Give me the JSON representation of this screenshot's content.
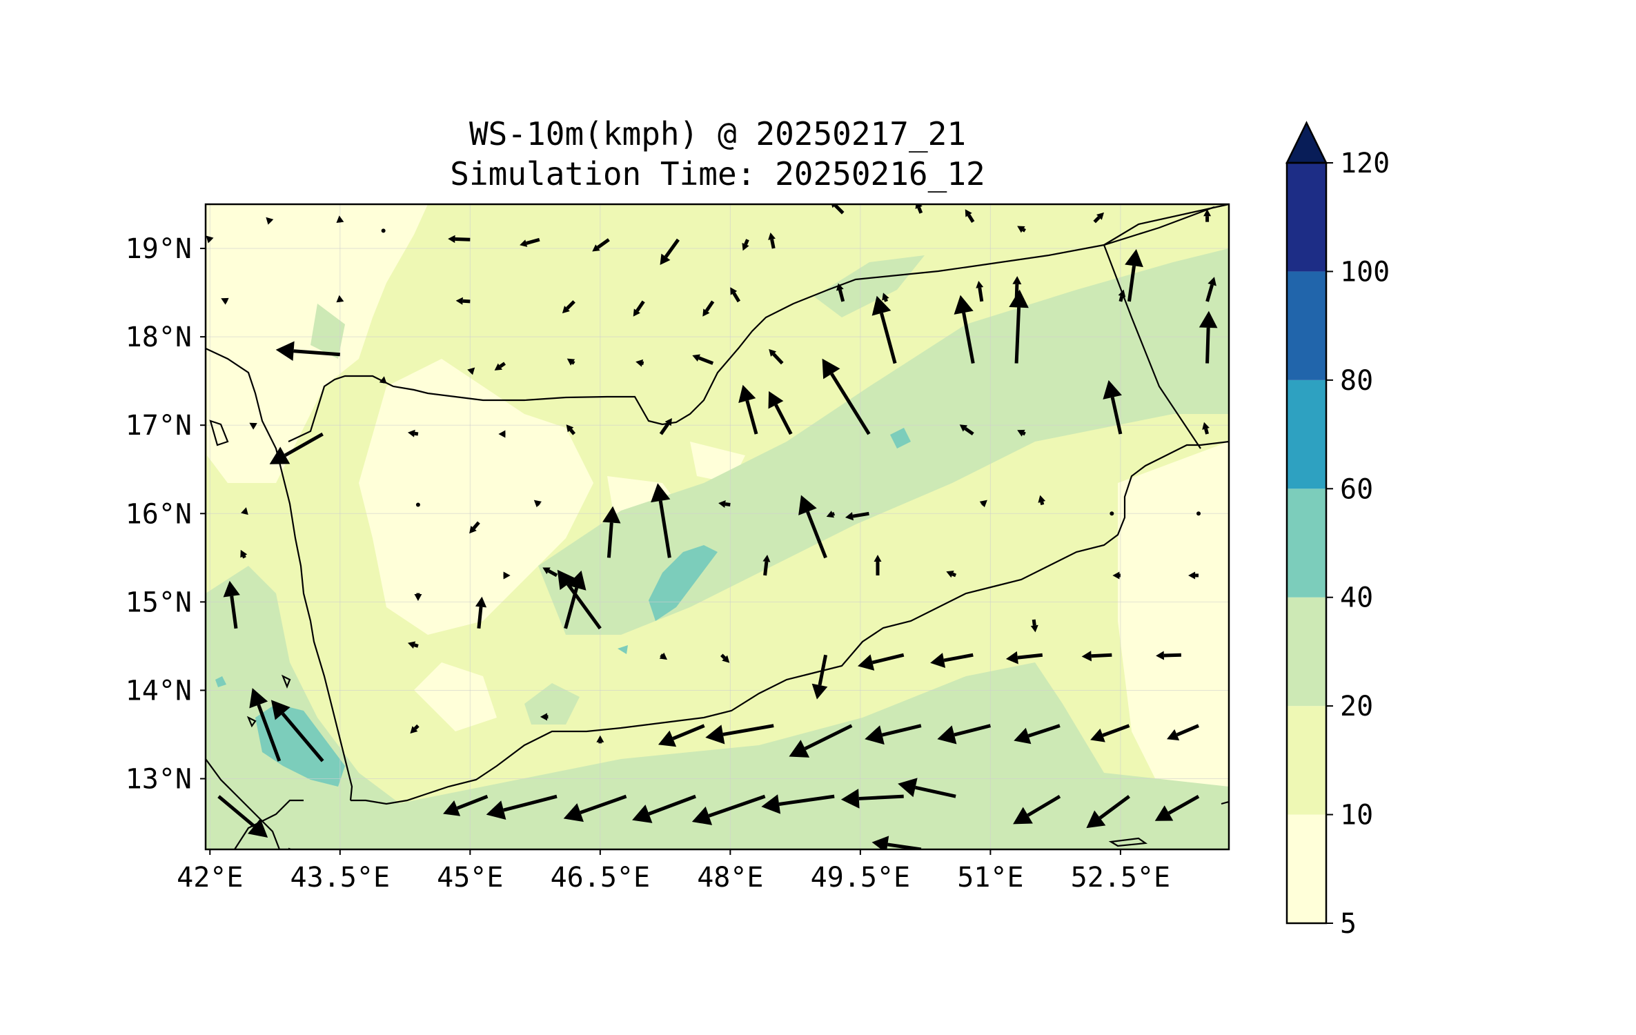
{
  "title": {
    "line1": "WS-10m(kmph) @ 20250217_21",
    "line2": "Simulation Time: 20250216_12"
  },
  "map": {
    "lon_range": [
      41.95,
      53.75
    ],
    "lat_range": [
      12.2,
      19.5
    ],
    "x_ticks": [
      {
        "value": 42.0,
        "label": "42°E"
      },
      {
        "value": 43.5,
        "label": "43.5°E"
      },
      {
        "value": 45.0,
        "label": "45°E"
      },
      {
        "value": 46.5,
        "label": "46.5°E"
      },
      {
        "value": 48.0,
        "label": "48°E"
      },
      {
        "value": 49.5,
        "label": "49.5°E"
      },
      {
        "value": 51.0,
        "label": "51°E"
      },
      {
        "value": 52.5,
        "label": "52.5°E"
      }
    ],
    "y_ticks": [
      {
        "value": 19,
        "label": "19°N"
      },
      {
        "value": 18,
        "label": "18°N"
      },
      {
        "value": 17,
        "label": "17°N"
      },
      {
        "value": 16,
        "label": "16°N"
      },
      {
        "value": 15,
        "label": "15°N"
      },
      {
        "value": 14,
        "label": "14°N"
      },
      {
        "value": 13,
        "label": "13°N"
      }
    ],
    "gridlines": true,
    "vectors": [
      {
        "lon": 42.3,
        "lat": 14.7,
        "u": -0.8,
        "v": 6.0
      },
      {
        "lon": 42.8,
        "lat": 13.2,
        "u": -3.4,
        "v": 9.2
      },
      {
        "lon": 43.3,
        "lat": 13.2,
        "u": -6.5,
        "v": 7.7
      },
      {
        "lon": 43.3,
        "lat": 16.9,
        "u": -6.7,
        "v": -3.8
      },
      {
        "lon": 43.5,
        "lat": 17.8,
        "u": -8.1,
        "v": 0.6
      },
      {
        "lon": 45.1,
        "lat": 14.7,
        "u": 0.4,
        "v": 4.0
      },
      {
        "lon": 46.1,
        "lat": 14.7,
        "u": 2.0,
        "v": 7.3
      },
      {
        "lon": 46.5,
        "lat": 14.7,
        "u": -5.4,
        "v": 7.4
      },
      {
        "lon": 46.6,
        "lat": 15.5,
        "u": 0.5,
        "v": 6.5
      },
      {
        "lon": 47.3,
        "lat": 15.5,
        "u": -1.5,
        "v": 9.4
      },
      {
        "lon": 48.3,
        "lat": 16.9,
        "u": -1.7,
        "v": 6.2
      },
      {
        "lon": 49.1,
        "lat": 15.5,
        "u": -3.1,
        "v": 7.9
      },
      {
        "lon": 49.6,
        "lat": 16.9,
        "u": -5.9,
        "v": 9.5
      },
      {
        "lon": 49.9,
        "lat": 17.7,
        "u": -2.3,
        "v": 8.5
      },
      {
        "lon": 50.8,
        "lat": 17.7,
        "u": -1.6,
        "v": 8.6
      },
      {
        "lon": 51.3,
        "lat": 17.7,
        "u": 0.4,
        "v": 9.3
      },
      {
        "lon": 52.5,
        "lat": 16.9,
        "u": -1.5,
        "v": 6.8
      },
      {
        "lon": 52.6,
        "lat": 18.4,
        "u": 0.9,
        "v": 6.6
      },
      {
        "lon": 53.5,
        "lat": 17.7,
        "u": 0.2,
        "v": 6.6
      },
      {
        "lon": 48.7,
        "lat": 16.9,
        "u": -2.8,
        "v": 5.4
      },
      {
        "lon": 50.6,
        "lat": 12.8,
        "u": -7.3,
        "v": 1.6
      },
      {
        "lon": 50.0,
        "lat": 12.8,
        "u": -7.9,
        "v": -0.4
      },
      {
        "lon": 49.2,
        "lat": 12.8,
        "u": -9.2,
        "v": -1.3
      },
      {
        "lon": 48.4,
        "lat": 12.8,
        "u": -9.2,
        "v": -3.2
      },
      {
        "lon": 47.6,
        "lat": 12.8,
        "u": -8.0,
        "v": -3.0
      },
      {
        "lon": 46.8,
        "lat": 12.8,
        "u": -7.9,
        "v": -2.8
      },
      {
        "lon": 46.0,
        "lat": 12.8,
        "u": -8.9,
        "v": -2.3
      },
      {
        "lon": 45.2,
        "lat": 12.8,
        "u": -5.6,
        "v": -2.2
      },
      {
        "lon": 49.4,
        "lat": 13.6,
        "u": -7.9,
        "v": -3.9
      },
      {
        "lon": 50.2,
        "lat": 13.6,
        "u": -7.1,
        "v": -1.7
      },
      {
        "lon": 51.0,
        "lat": 13.6,
        "u": -6.7,
        "v": -1.7
      },
      {
        "lon": 51.8,
        "lat": 13.6,
        "u": -5.8,
        "v": -1.9
      },
      {
        "lon": 52.6,
        "lat": 13.6,
        "u": -4.9,
        "v": -1.8
      },
      {
        "lon": 53.4,
        "lat": 13.6,
        "u": -4.0,
        "v": -1.7
      },
      {
        "lon": 52.6,
        "lat": 12.8,
        "u": -5.4,
        "v": -4.0
      },
      {
        "lon": 51.8,
        "lat": 12.8,
        "u": -5.9,
        "v": -3.5
      },
      {
        "lon": 53.4,
        "lat": 12.8,
        "u": -5.5,
        "v": -3.1
      },
      {
        "lon": 48.5,
        "lat": 13.6,
        "u": -8.6,
        "v": -1.5
      },
      {
        "lon": 47.7,
        "lat": 13.6,
        "u": -5.8,
        "v": -2.4
      },
      {
        "lon": 50.0,
        "lat": 14.4,
        "u": -5.8,
        "v": -1.4
      },
      {
        "lon": 50.8,
        "lat": 14.4,
        "u": -5.4,
        "v": -1.0
      },
      {
        "lon": 51.6,
        "lat": 14.4,
        "u": -4.6,
        "v": -0.5
      },
      {
        "lon": 52.4,
        "lat": 14.4,
        "u": -3.8,
        "v": -0.2
      },
      {
        "lon": 53.2,
        "lat": 14.4,
        "u": -3.2,
        "v": -0.1
      },
      {
        "lon": 49.1,
        "lat": 14.4,
        "u": -1.1,
        "v": -5.6
      },
      {
        "lon": 42.1,
        "lat": 12.8,
        "u": 6.2,
        "v": -5.2
      },
      {
        "lon": 42.9,
        "lat": 12.2,
        "u": 4.4,
        "v": -1.8
      },
      {
        "lon": 50.2,
        "lat": 12.2,
        "u": -6.2,
        "v": 0.9
      },
      {
        "lon": 46.2,
        "lat": 17.7,
        "u": -0.9,
        "v": 0.6
      },
      {
        "lon": 47.0,
        "lat": 17.7,
        "u": -1.0,
        "v": 0.2
      },
      {
        "lon": 47.8,
        "lat": 17.7,
        "u": -2.6,
        "v": 1.0
      },
      {
        "lon": 48.6,
        "lat": 17.7,
        "u": -1.7,
        "v": 1.8
      },
      {
        "lon": 48.1,
        "lat": 18.4,
        "u": -1.1,
        "v": 1.8
      },
      {
        "lon": 48.5,
        "lat": 19.0,
        "u": -0.4,
        "v": 2.0
      },
      {
        "lon": 49.3,
        "lat": 18.4,
        "u": -0.6,
        "v": 2.3
      },
      {
        "lon": 45.0,
        "lat": 18.4,
        "u": -1.8,
        "v": 0.1
      },
      {
        "lon": 45.0,
        "lat": 19.1,
        "u": -2.8,
        "v": 0.1
      },
      {
        "lon": 45.8,
        "lat": 19.1,
        "u": -2.5,
        "v": -0.7
      },
      {
        "lon": 46.6,
        "lat": 19.1,
        "u": -2.1,
        "v": -1.5
      },
      {
        "lon": 47.4,
        "lat": 19.1,
        "u": -2.3,
        "v": -3.2
      },
      {
        "lon": 48.2,
        "lat": 19.1,
        "u": -0.6,
        "v": -1.4
      },
      {
        "lon": 46.2,
        "lat": 18.4,
        "u": -1.5,
        "v": -1.5
      },
      {
        "lon": 47.0,
        "lat": 18.4,
        "u": -1.3,
        "v": -1.9
      },
      {
        "lon": 47.8,
        "lat": 18.4,
        "u": -1.3,
        "v": -1.9
      },
      {
        "lon": 49.3,
        "lat": 19.4,
        "u": -1.6,
        "v": 1.6
      },
      {
        "lon": 50.2,
        "lat": 19.4,
        "u": -0.6,
        "v": 1.5
      },
      {
        "lon": 50.8,
        "lat": 19.3,
        "u": -1.0,
        "v": 1.6
      },
      {
        "lon": 51.4,
        "lat": 19.2,
        "u": -1.0,
        "v": 0.6
      },
      {
        "lon": 52.2,
        "lat": 19.3,
        "u": 1.2,
        "v": 1.2
      },
      {
        "lon": 53.5,
        "lat": 19.3,
        "u": 0.0,
        "v": 1.6
      },
      {
        "lon": 53.5,
        "lat": 18.4,
        "u": 0.9,
        "v": 3.1
      },
      {
        "lon": 51.3,
        "lat": 18.4,
        "u": 0.1,
        "v": 3.2
      },
      {
        "lon": 52.5,
        "lat": 18.4,
        "u": 0.4,
        "v": 1.5
      },
      {
        "lon": 50.9,
        "lat": 18.4,
        "u": -0.4,
        "v": 2.6
      },
      {
        "lon": 49.8,
        "lat": 18.4,
        "u": -0.4,
        "v": 1.1
      },
      {
        "lon": 47.2,
        "lat": 16.9,
        "u": 1.4,
        "v": 2.0
      },
      {
        "lon": 46.2,
        "lat": 16.9,
        "u": -1.0,
        "v": 1.2
      },
      {
        "lon": 45.4,
        "lat": 16.9,
        "u": -0.8,
        "v": 0.0
      },
      {
        "lon": 44.4,
        "lat": 16.9,
        "u": -1.3,
        "v": 0.2
      },
      {
        "lon": 45.4,
        "lat": 17.7,
        "u": -1.3,
        "v": -0.9
      },
      {
        "lon": 45.8,
        "lat": 16.1,
        "u": -0.7,
        "v": 0.6
      },
      {
        "lon": 45.1,
        "lat": 15.9,
        "u": -1.2,
        "v": -1.4
      },
      {
        "lon": 44.4,
        "lat": 16.1,
        "u": -0.3,
        "v": -0.4
      },
      {
        "lon": 44.4,
        "lat": 15.1,
        "u": 0.0,
        "v": -1.0
      },
      {
        "lon": 45.4,
        "lat": 15.3,
        "u": 0.7,
        "v": 0.0
      },
      {
        "lon": 46.0,
        "lat": 15.3,
        "u": -1.8,
        "v": 1.0
      },
      {
        "lon": 44.4,
        "lat": 14.5,
        "u": -1.3,
        "v": 0.4
      },
      {
        "lon": 44.4,
        "lat": 13.6,
        "u": -1.0,
        "v": -1.0
      },
      {
        "lon": 45.9,
        "lat": 13.7,
        "u": -1.0,
        "v": 0.0
      },
      {
        "lon": 46.5,
        "lat": 13.4,
        "u": 0.0,
        "v": 1.0
      },
      {
        "lon": 47.2,
        "lat": 14.4,
        "u": 0.8,
        "v": -0.6
      },
      {
        "lon": 47.9,
        "lat": 14.4,
        "u": 1.0,
        "v": -1.0
      },
      {
        "lon": 48.0,
        "lat": 16.1,
        "u": -1.5,
        "v": 0.2
      },
      {
        "lon": 49.2,
        "lat": 16.0,
        "u": -1.0,
        "v": -0.4
      },
      {
        "lon": 49.6,
        "lat": 16.0,
        "u": -3.0,
        "v": -0.5
      },
      {
        "lon": 50.9,
        "lat": 16.1,
        "u": 0.7,
        "v": 0.6
      },
      {
        "lon": 51.6,
        "lat": 16.1,
        "u": -0.3,
        "v": 1.2
      },
      {
        "lon": 50.6,
        "lat": 15.3,
        "u": -1.2,
        "v": 0.5
      },
      {
        "lon": 51.5,
        "lat": 14.8,
        "u": 0.2,
        "v": -1.6
      },
      {
        "lon": 52.5,
        "lat": 15.3,
        "u": -1.0,
        "v": 0.0
      },
      {
        "lon": 53.4,
        "lat": 15.3,
        "u": -1.3,
        "v": 0.0
      },
      {
        "lon": 53.4,
        "lat": 16.0,
        "u": -0.5,
        "v": 0.0
      },
      {
        "lon": 52.4,
        "lat": 16.0,
        "u": -0.5,
        "v": 0.0
      },
      {
        "lon": 51.4,
        "lat": 16.9,
        "u": -1.0,
        "v": 0.5
      },
      {
        "lon": 50.8,
        "lat": 16.9,
        "u": -1.7,
        "v": 1.2
      },
      {
        "lon": 48.4,
        "lat": 15.3,
        "u": 0.3,
        "v": 2.6
      },
      {
        "lon": 49.7,
        "lat": 15.3,
        "u": 0.0,
        "v": 2.6
      },
      {
        "lon": 42.4,
        "lat": 15.5,
        "u": -0.5,
        "v": 1.0
      },
      {
        "lon": 42.4,
        "lat": 16.0,
        "u": 0.2,
        "v": 0.8
      },
      {
        "lon": 42.5,
        "lat": 17.0,
        "u": -0.5,
        "v": 0.3
      },
      {
        "lon": 42.2,
        "lat": 18.4,
        "u": -0.8,
        "v": 0.4
      },
      {
        "lon": 42.0,
        "lat": 19.1,
        "u": -0.5,
        "v": 0.5
      },
      {
        "lon": 42.7,
        "lat": 19.3,
        "u": -0.6,
        "v": 0.6
      },
      {
        "lon": 43.5,
        "lat": 19.3,
        "u": -0.1,
        "v": 0.8
      },
      {
        "lon": 43.5,
        "lat": 18.4,
        "u": -0.1,
        "v": 0.8
      },
      {
        "lon": 44.0,
        "lat": 17.5,
        "u": 0.1,
        "v": 0.6
      },
      {
        "lon": 45.0,
        "lat": 17.6,
        "u": 0.6,
        "v": 0.6
      },
      {
        "lon": 44.0,
        "lat": 19.2,
        "u": 0.1,
        "v": 0.5
      },
      {
        "lon": 53.5,
        "lat": 16.9,
        "u": -0.4,
        "v": 1.5
      }
    ],
    "colorbar": {
      "levels": [
        "5",
        "10",
        "20",
        "40",
        "60",
        "80",
        "100",
        "120"
      ],
      "colors": [
        "#ffffd9",
        "#eef8b4",
        "#cde9b5",
        "#7ccdbb",
        "#2ea1c1",
        "#2165ab",
        "#1d2d86",
        "#081d58"
      ],
      "extend": "max"
    },
    "colors": {
      "land_base": "#eef8b4",
      "lowest": "#ffffd9",
      "mid": "#cde9b5",
      "high": "#7ccdbb",
      "coast": "#000000",
      "arrow": "#000000"
    }
  }
}
